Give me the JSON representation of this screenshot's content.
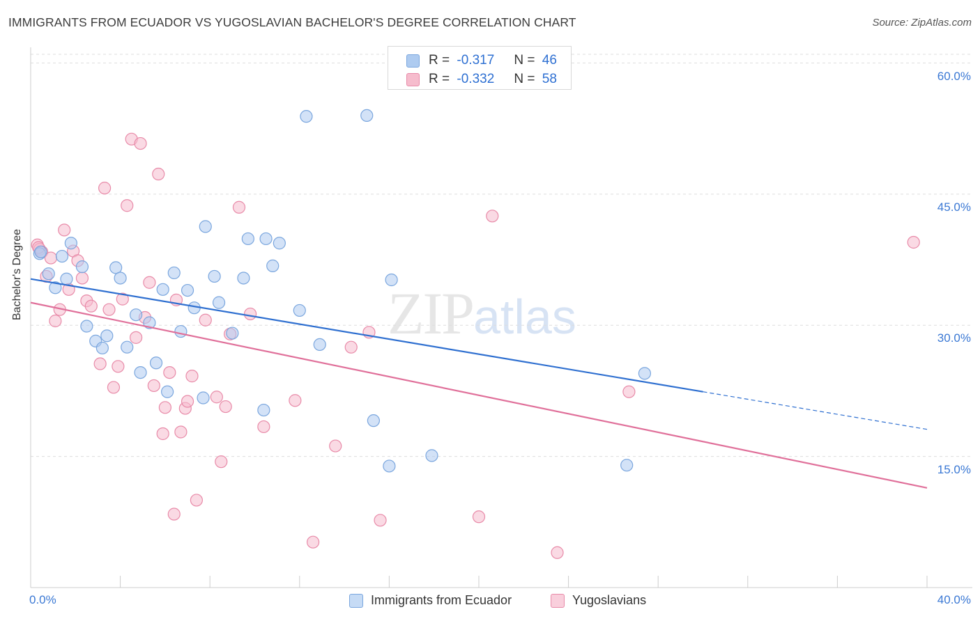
{
  "title": "IMMIGRANTS FROM ECUADOR VS YUGOSLAVIAN BACHELOR'S DEGREE CORRELATION CHART",
  "source": "Source: ZipAtlas.com",
  "watermark": {
    "zip": "ZIP",
    "atlas": "atlas"
  },
  "colors": {
    "blue_fill": "#aecbf0",
    "blue_stroke": "#7aa6de",
    "blue_line": "#2e6fd0",
    "pink_fill": "#f6bccd",
    "pink_stroke": "#e88aa8",
    "pink_line": "#e0709a",
    "axis_text": "#3a78d4",
    "grid": "#dddddd"
  },
  "legend_top": {
    "rows": [
      {
        "r_label": "R =",
        "r_value": "-0.317",
        "n_label": "N =",
        "n_value": "46"
      },
      {
        "r_label": "R =",
        "r_value": "-0.332",
        "n_label": "N =",
        "n_value": "58"
      }
    ]
  },
  "legend_bottom": [
    "Immigrants from Ecuador",
    "Yugoslavians"
  ],
  "chart_data": {
    "type": "scatter",
    "title": "IMMIGRANTS FROM ECUADOR VS YUGOSLAVIAN BACHELOR'S DEGREE CORRELATION CHART",
    "xlabel": "",
    "ylabel": "Bachelor's Degree",
    "xlim": [
      0,
      40
    ],
    "ylim": [
      0,
      61
    ],
    "x_tick_labels": [
      "0.0%",
      "40.0%"
    ],
    "y_ticks": [
      15,
      30,
      45,
      60
    ],
    "y_tick_labels": [
      "15.0%",
      "30.0%",
      "45.0%",
      "60.0%"
    ],
    "grid": true,
    "legend_placement": "bottom",
    "series": [
      {
        "name": "Immigrants from Ecuador",
        "points": [
          [
            0.4,
            38.2
          ],
          [
            0.8,
            35.9
          ],
          [
            1.1,
            34.3
          ],
          [
            1.4,
            37.9
          ],
          [
            1.6,
            35.3
          ],
          [
            1.8,
            39.4
          ],
          [
            2.3,
            36.7
          ],
          [
            2.5,
            29.9
          ],
          [
            2.9,
            28.2
          ],
          [
            3.2,
            27.4
          ],
          [
            3.4,
            28.8
          ],
          [
            3.8,
            36.6
          ],
          [
            4.0,
            35.4
          ],
          [
            4.3,
            27.5
          ],
          [
            4.7,
            31.2
          ],
          [
            4.9,
            24.6
          ],
          [
            5.3,
            30.3
          ],
          [
            5.6,
            25.7
          ],
          [
            5.9,
            34.1
          ],
          [
            6.1,
            22.4
          ],
          [
            6.4,
            36.0
          ],
          [
            6.7,
            29.3
          ],
          [
            7.0,
            34.0
          ],
          [
            7.3,
            32.0
          ],
          [
            7.7,
            21.7
          ],
          [
            7.8,
            41.3
          ],
          [
            8.2,
            35.6
          ],
          [
            8.4,
            32.6
          ],
          [
            9.0,
            29.1
          ],
          [
            9.5,
            35.4
          ],
          [
            9.7,
            39.9
          ],
          [
            10.4,
            20.3
          ],
          [
            10.5,
            39.9
          ],
          [
            10.8,
            36.8
          ],
          [
            11.1,
            39.4
          ],
          [
            12.0,
            31.7
          ],
          [
            12.3,
            53.9
          ],
          [
            12.9,
            27.8
          ],
          [
            15.0,
            54.0
          ],
          [
            15.3,
            19.1
          ],
          [
            16.0,
            13.9
          ],
          [
            16.1,
            35.2
          ],
          [
            17.9,
            15.1
          ],
          [
            26.6,
            14.0
          ],
          [
            27.4,
            24.5
          ],
          [
            0.45,
            38.4
          ]
        ]
      },
      {
        "name": "Yugoslavians",
        "points": [
          [
            0.3,
            39.2
          ],
          [
            0.4,
            38.7
          ],
          [
            0.5,
            38.4
          ],
          [
            0.7,
            35.6
          ],
          [
            0.9,
            37.7
          ],
          [
            1.1,
            30.5
          ],
          [
            1.3,
            31.8
          ],
          [
            1.5,
            40.9
          ],
          [
            1.7,
            34.1
          ],
          [
            1.9,
            38.5
          ],
          [
            2.1,
            37.4
          ],
          [
            2.3,
            35.4
          ],
          [
            2.5,
            32.8
          ],
          [
            2.7,
            32.2
          ],
          [
            3.1,
            25.6
          ],
          [
            3.3,
            45.7
          ],
          [
            3.5,
            31.8
          ],
          [
            3.7,
            22.9
          ],
          [
            3.9,
            25.3
          ],
          [
            4.1,
            33.0
          ],
          [
            4.3,
            43.7
          ],
          [
            4.5,
            51.3
          ],
          [
            4.7,
            28.6
          ],
          [
            4.9,
            50.8
          ],
          [
            5.1,
            30.9
          ],
          [
            5.3,
            34.9
          ],
          [
            5.5,
            23.1
          ],
          [
            5.7,
            47.3
          ],
          [
            5.9,
            17.6
          ],
          [
            6.0,
            20.6
          ],
          [
            6.2,
            24.6
          ],
          [
            6.4,
            8.4
          ],
          [
            6.5,
            32.9
          ],
          [
            6.7,
            17.8
          ],
          [
            6.9,
            20.5
          ],
          [
            7.0,
            21.3
          ],
          [
            7.2,
            24.2
          ],
          [
            7.4,
            10.0
          ],
          [
            7.8,
            30.6
          ],
          [
            8.3,
            21.8
          ],
          [
            8.5,
            14.4
          ],
          [
            8.7,
            20.7
          ],
          [
            8.9,
            29.0
          ],
          [
            9.3,
            43.5
          ],
          [
            9.8,
            31.3
          ],
          [
            10.4,
            18.4
          ],
          [
            11.8,
            21.4
          ],
          [
            12.6,
            5.2
          ],
          [
            13.6,
            16.2
          ],
          [
            14.3,
            27.5
          ],
          [
            15.1,
            29.2
          ],
          [
            15.6,
            7.7
          ],
          [
            20.0,
            8.1
          ],
          [
            20.6,
            42.5
          ],
          [
            23.5,
            4.0
          ],
          [
            26.7,
            22.4
          ],
          [
            39.4,
            39.5
          ],
          [
            0.35,
            38.9
          ]
        ]
      }
    ],
    "trend_lines": [
      {
        "series": "Immigrants from Ecuador",
        "x": [
          0,
          30
        ],
        "y": [
          35.3,
          22.4
        ],
        "dashed_to": [
          40,
          18.1
        ]
      },
      {
        "series": "Yugoslavians",
        "x": [
          0,
          40
        ],
        "y": [
          32.6,
          11.4
        ]
      }
    ]
  }
}
